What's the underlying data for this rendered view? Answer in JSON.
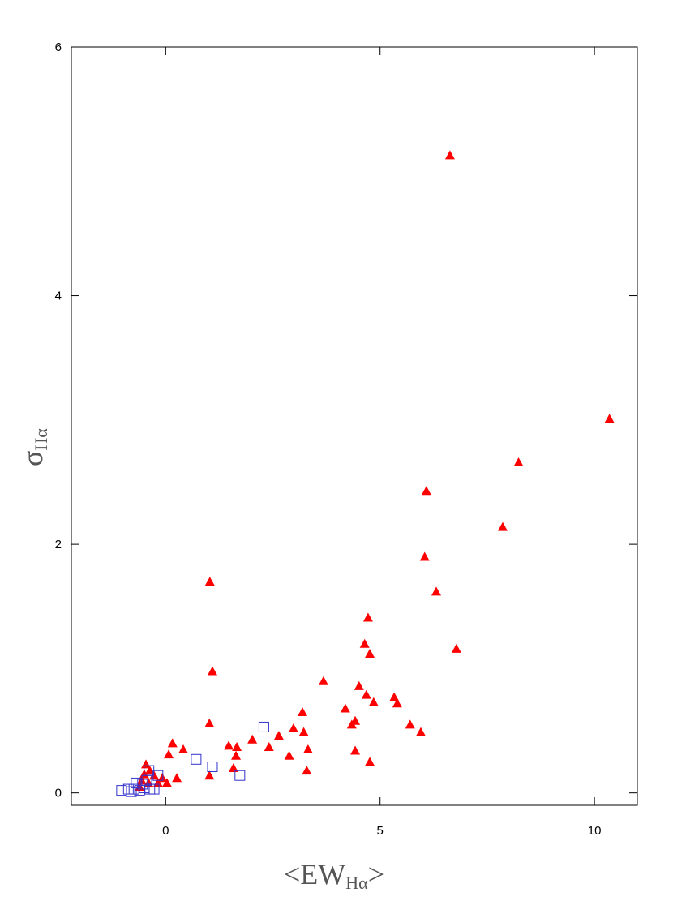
{
  "chart_data": {
    "type": "scatter",
    "xlabel": {
      "start": "<EW",
      "sub": "Hα",
      "end": ">"
    },
    "ylabel": {
      "main": "σ",
      "sub": "Hα"
    },
    "xlim": [
      -2.2,
      11
    ],
    "ylim": [
      -0.1,
      6
    ],
    "xticks": [
      0,
      5,
      10
    ],
    "yticks": [
      0,
      2,
      4,
      6
    ],
    "series": [
      {
        "marker": "triangle",
        "color": "#ff0000",
        "x": [
          6.63,
          10.35,
          8.23,
          6.08,
          7.86,
          6.04,
          6.31,
          1.03,
          4.72,
          4.64,
          4.76,
          6.78,
          1.09,
          3.68,
          4.51,
          4.68,
          4.85,
          5.33,
          5.4,
          4.19,
          3.19,
          1.02,
          4.42,
          4.34,
          5.7,
          5.95,
          2.98,
          3.22,
          2.64,
          2.02,
          0.16,
          0.41,
          1.47,
          1.66,
          2.41,
          3.32,
          4.42,
          0.07,
          1.64,
          2.88,
          4.76,
          1.58,
          3.29,
          1.02,
          0.26,
          0.03,
          -0.46,
          -0.37,
          -0.5,
          -0.27,
          -0.08,
          -0.56,
          -0.4,
          -0.18,
          -0.61
        ],
        "values": [
          5.13,
          3.01,
          2.66,
          2.43,
          2.14,
          1.9,
          1.62,
          1.7,
          1.41,
          1.2,
          1.12,
          1.16,
          0.98,
          0.9,
          0.86,
          0.79,
          0.73,
          0.77,
          0.72,
          0.68,
          0.65,
          0.56,
          0.58,
          0.55,
          0.55,
          0.49,
          0.52,
          0.49,
          0.46,
          0.43,
          0.4,
          0.35,
          0.38,
          0.37,
          0.37,
          0.35,
          0.34,
          0.31,
          0.3,
          0.3,
          0.25,
          0.2,
          0.18,
          0.14,
          0.12,
          0.08,
          0.23,
          0.18,
          0.15,
          0.14,
          0.12,
          0.1,
          0.08,
          0.08,
          0.05
        ]
      },
      {
        "marker": "square",
        "color": "#3333cc",
        "x": [
          2.29,
          0.71,
          1.09,
          1.73,
          -0.18,
          -0.39,
          -0.44,
          -0.69,
          -0.54,
          -0.37,
          -0.5,
          -0.74,
          -0.87,
          -1.03,
          -0.8,
          -0.61,
          -0.27
        ],
        "values": [
          0.53,
          0.27,
          0.21,
          0.14,
          0.14,
          0.18,
          0.1,
          0.08,
          0.07,
          0.03,
          0.04,
          0.03,
          0.03,
          0.02,
          0.01,
          0.02,
          0.03
        ]
      }
    ]
  }
}
